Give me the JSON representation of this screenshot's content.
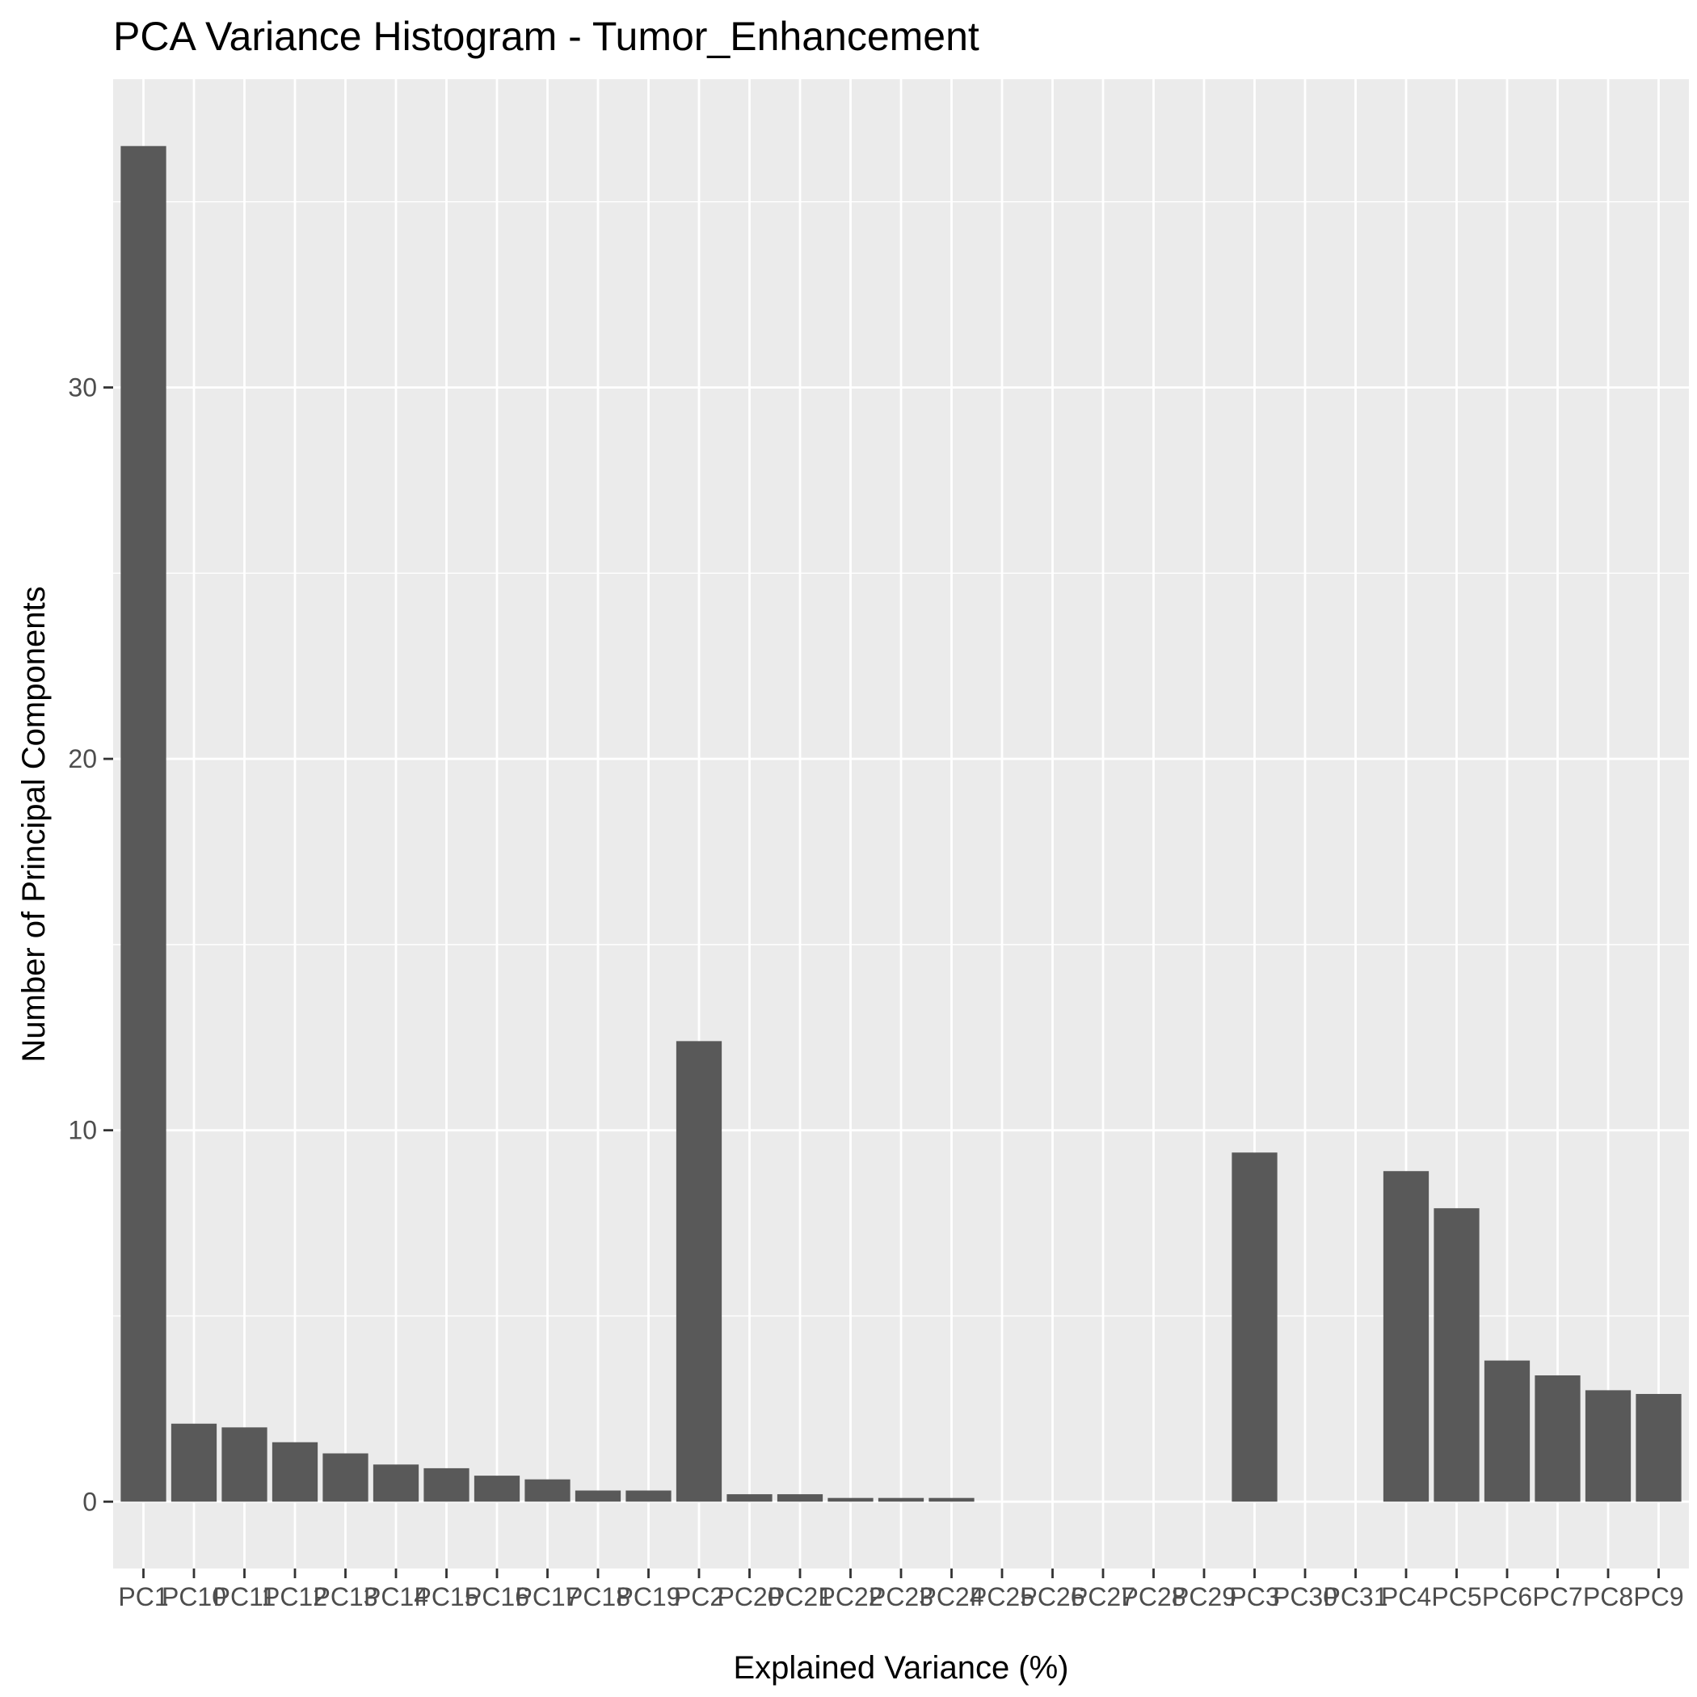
{
  "chart_data": {
    "type": "bar",
    "title": "PCA Variance Histogram - Tumor_Enhancement",
    "xlabel": "Explained Variance (%)",
    "ylabel": "Number of Principal Components",
    "categories": [
      "PC1",
      "PC10",
      "PC11",
      "PC12",
      "PC13",
      "PC14",
      "PC15",
      "PC16",
      "PC17",
      "PC18",
      "PC19",
      "PC2",
      "PC20",
      "PC21",
      "PC22",
      "PC23",
      "PC24",
      "PC25",
      "PC26",
      "PC27",
      "PC28",
      "PC29",
      "PC3",
      "PC30",
      "PC31",
      "PC4",
      "PC5",
      "PC6",
      "PC7",
      "PC8",
      "PC9"
    ],
    "values": [
      36.5,
      2.1,
      2.0,
      1.6,
      1.3,
      1.0,
      0.9,
      0.7,
      0.6,
      0.3,
      0.3,
      12.4,
      0.2,
      0.2,
      0.1,
      0.1,
      0.1,
      0,
      0,
      0,
      0,
      0,
      9.4,
      0,
      0,
      8.9,
      7.9,
      3.8,
      3.4,
      3.0,
      2.9
    ],
    "ylim": [
      -1.8,
      38.3
    ],
    "yticks": [
      0,
      10,
      20,
      30
    ],
    "grid": true,
    "legend": "none",
    "colors": {
      "bar": "#595959",
      "panel": "#ebebeb",
      "grid": "#ffffff",
      "text": "#000000",
      "tick_text": "#4d4d4d",
      "tick": "#333333"
    }
  }
}
